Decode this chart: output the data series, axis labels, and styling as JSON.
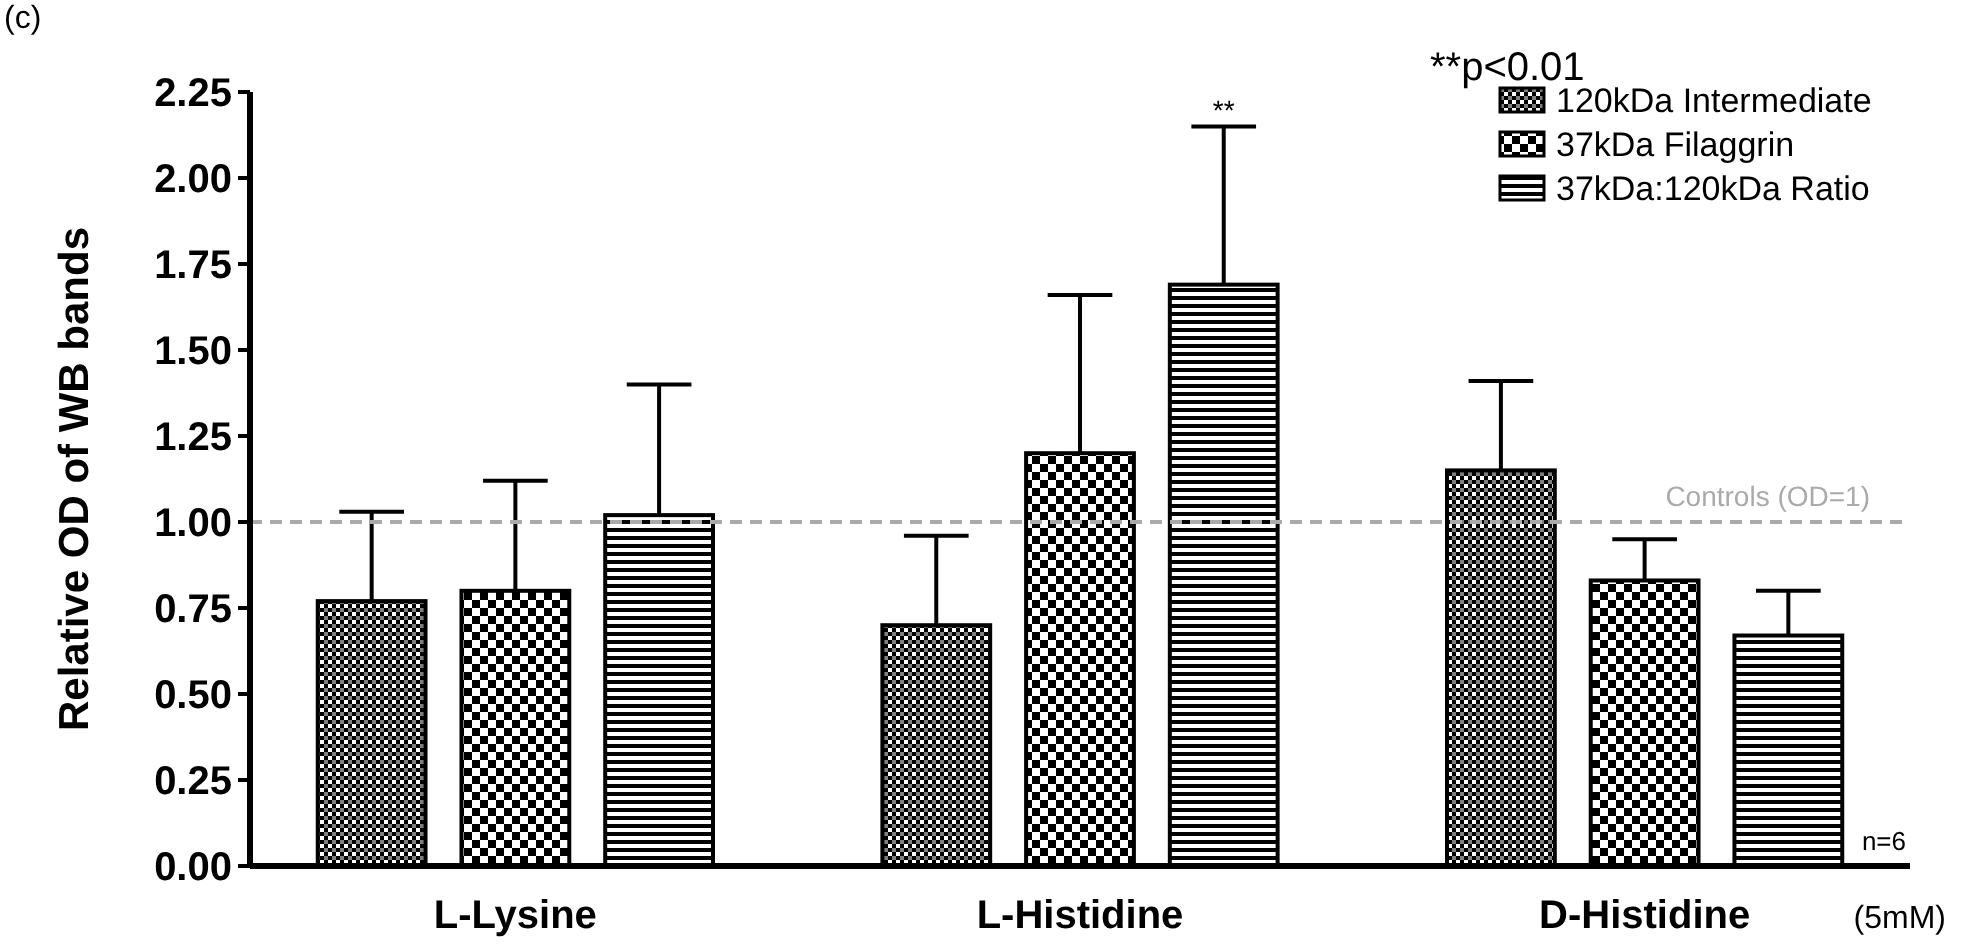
{
  "chart_data": {
    "type": "bar",
    "ylabel": "Relative OD of WB bands",
    "xlabel": "(5mM)",
    "categories": [
      "L-Lysine",
      "L-Histidine",
      "D-Histidine"
    ],
    "series": [
      {
        "name": "120kDa Intermediate",
        "color": "#000000",
        "values": [
          0.77,
          0.7,
          1.15
        ],
        "errors": [
          [
            0.77,
            1.03
          ],
          [
            0.7,
            0.96
          ],
          [
            1.15,
            1.41
          ]
        ]
      },
      {
        "name": "37kDa Filaggrin",
        "color": "#000000",
        "values": [
          0.8,
          1.2,
          0.83
        ],
        "errors": [
          [
            0.8,
            1.12
          ],
          [
            1.2,
            1.66
          ],
          [
            0.83,
            0.95
          ]
        ]
      },
      {
        "name": "37kDa:120kDa Ratio",
        "color": "#000000",
        "values": [
          1.02,
          1.69,
          0.67
        ],
        "errors": [
          [
            1.02,
            1.4
          ],
          [
            1.69,
            2.15
          ],
          [
            0.67,
            0.8
          ]
        ]
      }
    ],
    "ylim": [
      0,
      2.25
    ],
    "yticks": [
      {
        "value": 0,
        "label": "0.00"
      },
      {
        "value": 0.25,
        "label": "0.25"
      },
      {
        "value": 0.5,
        "label": "0.50"
      },
      {
        "value": 0.75,
        "label": "0.75"
      },
      {
        "value": 1,
        "label": "1.00"
      },
      {
        "value": 1.25,
        "label": "1.25"
      },
      {
        "value": 1.5,
        "label": "1.50"
      },
      {
        "value": 1.75,
        "label": "1.75"
      },
      {
        "value": 2,
        "label": "2.00"
      },
      {
        "value": 2.25,
        "label": "2.25"
      }
    ],
    "ref_lines": [
      {
        "axis": "y",
        "value": 1,
        "label": "Controls (OD=1)",
        "color": "#aaaaaa",
        "line_style": "dashed"
      }
    ],
    "legend": "top right",
    "annotations": [
      "(c)",
      "**p<0.01",
      "n=6",
      "**"
    ]
  }
}
